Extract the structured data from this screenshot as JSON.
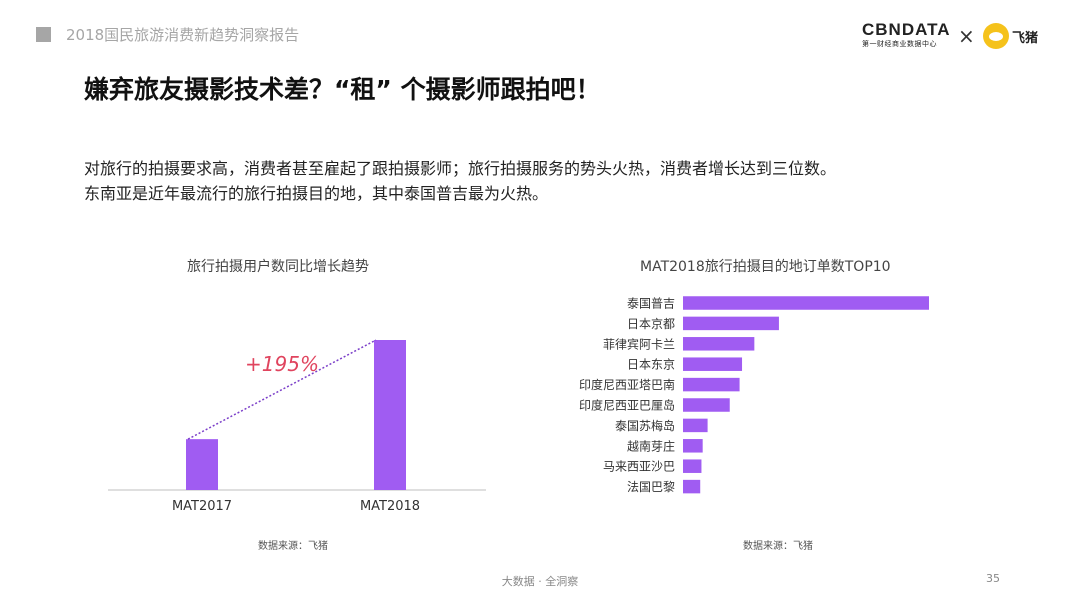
{
  "header": {
    "report_title": "2018国民旅游消费新趋势洞察报告",
    "logo_cbndata_text": "CBNDATA",
    "logo_cbndata_subtitle": "第一财经商业数据中心",
    "logo_separator": "×",
    "logo_fliggy_text": "飞猪"
  },
  "main_title": "嫌弃旅友摄影技术差？“租” 个摄影师跟拍吧！",
  "description": [
    "对旅行的拍摄要求高，消费者甚至雇起了跟拍摄影师；旅行拍摄服务的势头火热，消费者增长达到三位数。",
    "东南亚是近年最流行的旅行拍摄目的地，其中泰国普吉最为火热。"
  ],
  "colors": {
    "bar": "#a05cf2",
    "growth_label": "#e0445e",
    "trend_line": "#7b3fc9",
    "axis": "#bfbfbf"
  },
  "chart_data": [
    {
      "type": "bar",
      "title": "旅行拍摄用户数同比增长趋势",
      "categories": [
        "MAT2017",
        "MAT2018"
      ],
      "values": [
        1,
        2.95
      ],
      "annotation": "+195%",
      "source": "数据来源：飞猪"
    },
    {
      "type": "bar",
      "orientation": "horizontal",
      "title": "MAT2018旅行拍摄目的地订单数TOP10",
      "categories": [
        "泰国普吉",
        "日本京都",
        "菲律宾阿卡兰",
        "日本东京",
        "印度尼西亚塔巴南",
        "印度尼西亚巴厘岛",
        "泰国苏梅岛",
        "越南芽庄",
        "马来西亚沙巴",
        "法国巴黎"
      ],
      "values": [
        100,
        39,
        29,
        24,
        23,
        19,
        10,
        8,
        7.5,
        7
      ],
      "source": "数据来源：飞猪"
    }
  ],
  "footer": {
    "text": "大数据 · 全洞察",
    "page_number": "35"
  }
}
